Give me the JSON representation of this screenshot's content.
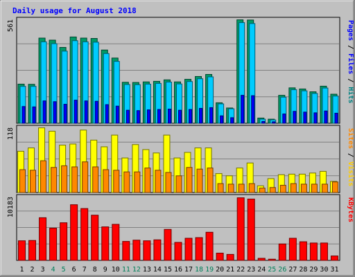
{
  "chart_data": {
    "type": "bar",
    "title": "Daily usage for August 2018",
    "categories": [
      "1",
      "2",
      "3",
      "4",
      "5",
      "6",
      "7",
      "8",
      "9",
      "10",
      "11",
      "12",
      "13",
      "14",
      "15",
      "16",
      "17",
      "18",
      "19",
      "20",
      "21",
      "22",
      "23",
      "24",
      "25",
      "26",
      "27",
      "28",
      "29",
      "30",
      "31"
    ],
    "weekend_days": [
      "4",
      "5",
      "11",
      "12",
      "18",
      "19",
      "25",
      "26"
    ],
    "panels": [
      {
        "id": "pages-files-hits",
        "max_label": "561",
        "ylim": [
          0,
          561
        ],
        "side_label": [
          {
            "text": "Pages",
            "color": "#0000ff"
          },
          {
            "text": " / ",
            "color": "#000000"
          },
          {
            "text": "Files",
            "color": "#0000ff"
          },
          {
            "text": " / ",
            "color": "#000000"
          },
          {
            "text": "Hits",
            "color": "#008080"
          }
        ],
        "series": [
          {
            "name": "Hits",
            "color": "#009966",
            "values": [
              210,
              209,
              457,
              446,
              407,
              463,
              457,
              455,
              393,
              350,
              220,
              219,
              222,
              225,
              233,
              222,
              236,
              251,
              262,
              110,
              82,
              555,
              554,
              28,
              22,
              150,
              190,
              184,
              169,
              199,
              156
            ]
          },
          {
            "name": "Files",
            "color": "#00ccff",
            "values": [
              198,
              198,
              437,
              427,
              387,
              443,
              437,
              435,
              374,
              332,
              208,
              207,
              210,
              214,
              221,
              211,
              224,
              239,
              249,
              104,
              78,
              540,
              535,
              22,
              18,
              140,
              180,
              174,
              160,
              189,
              146
            ]
          },
          {
            "name": "Pages",
            "color": "#0000ff",
            "values": [
              90,
              88,
              120,
              116,
              102,
              124,
              120,
              118,
              100,
              92,
              70,
              68,
              72,
              74,
              76,
              70,
              74,
              80,
              84,
              40,
              30,
              150,
              148,
              10,
              8,
              50,
              64,
              60,
              56,
              66,
              54
            ]
          }
        ]
      },
      {
        "id": "sites-visits",
        "max_label": "118",
        "ylim": [
          0,
          118
        ],
        "side_label": [
          {
            "text": "Sites",
            "color": "#ff8800"
          },
          {
            "text": " / ",
            "color": "#000000"
          },
          {
            "text": "Visits",
            "color": "#ffcc00"
          }
        ],
        "series": [
          {
            "name": "Visits",
            "color": "#ffff00",
            "values": [
              74,
              80,
              116,
              110,
              85,
              87,
              112,
              94,
              82,
              103,
              62,
              86,
              77,
              71,
              103,
              62,
              72,
              80,
              80,
              34,
              30,
              44,
              53,
              12,
              25,
              32,
              33,
              33,
              35,
              38,
              20
            ]
          },
          {
            "name": "Sites",
            "color": "#ff8800",
            "values": [
              41,
              40,
              57,
              45,
              48,
              46,
              55,
              46,
              41,
              40,
              37,
              37,
              44,
              40,
              36,
              30,
              45,
              42,
              44,
              16,
              15,
              15,
              16,
              8,
              9,
              13,
              16,
              15,
              15,
              15,
              19
            ]
          }
        ]
      },
      {
        "id": "kbytes",
        "max_label": "10183",
        "ylim": [
          0,
          10183
        ],
        "side_label": [
          {
            "text": "KBytes",
            "color": "#ff0000"
          }
        ],
        "series": [
          {
            "name": "KBytes",
            "color": "#ff0000",
            "values": [
              3100,
              3150,
              6750,
              5100,
              5950,
              8800,
              8200,
              7150,
              5300,
              5700,
              3000,
              3200,
              3100,
              3250,
              4900,
              2850,
              3500,
              3600,
              4450,
              1150,
              950,
              9900,
              9700,
              330,
              190,
              2600,
              3500,
              2950,
              2750,
              2750,
              700
            ]
          }
        ]
      }
    ]
  },
  "colors": {
    "background": "#c0c0c0",
    "plot_background": "#c0c0c0",
    "title": "#0000ff",
    "weekday_label": "#000000",
    "weekend_label": "#00805a"
  }
}
